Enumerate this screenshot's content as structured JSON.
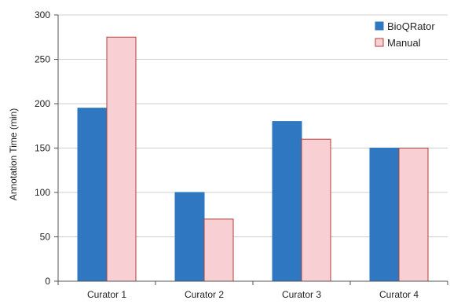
{
  "chart_data": {
    "type": "bar",
    "title": "",
    "xlabel": "",
    "ylabel": "Annotation Time (min)",
    "categories": [
      "Curator 1",
      "Curator 2",
      "Curator 3",
      "Curator 4"
    ],
    "series": [
      {
        "name": "BioQRator",
        "values": [
          195,
          100,
          180,
          150
        ],
        "color": "#2f77c0",
        "stroke": "#2f77c0"
      },
      {
        "name": "Manual",
        "values": [
          275,
          70,
          160,
          150
        ],
        "color": "#f8cfd3",
        "stroke": "#b0403a"
      }
    ],
    "ylim": [
      0,
      300
    ],
    "yticks": [
      0,
      50,
      100,
      150,
      200,
      250,
      300
    ],
    "grid": "horizontal",
    "gridColor": "#cfcfcf",
    "legend": "top-right"
  }
}
